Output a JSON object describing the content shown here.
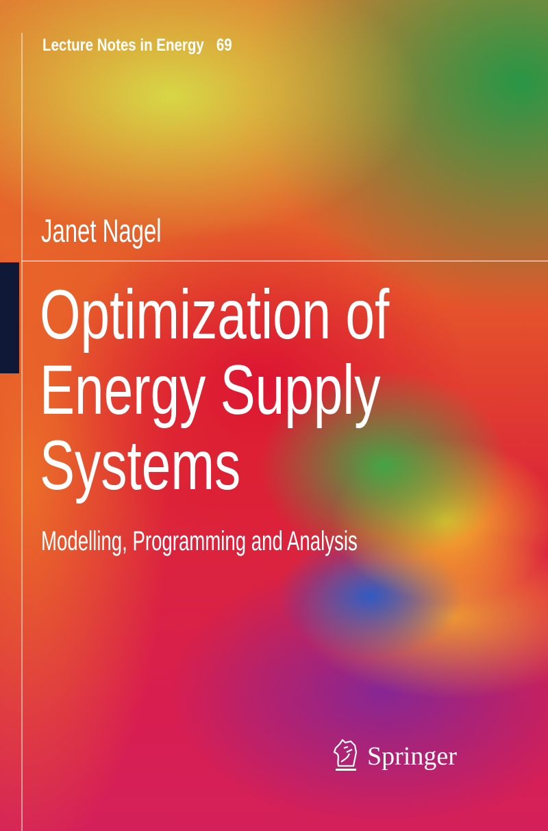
{
  "series": {
    "name": "Lecture Notes in Energy",
    "volume": "69"
  },
  "author": "Janet Nagel",
  "title_lines": [
    "Optimization of",
    "Energy Supply",
    "Systems"
  ],
  "subtitle": "Modelling, Programming and Analysis",
  "publisher": {
    "name": "Springer",
    "logo_icon": "springer-horse-icon"
  },
  "colors": {
    "accent_bar": "#101838",
    "text": "#ffffff"
  }
}
